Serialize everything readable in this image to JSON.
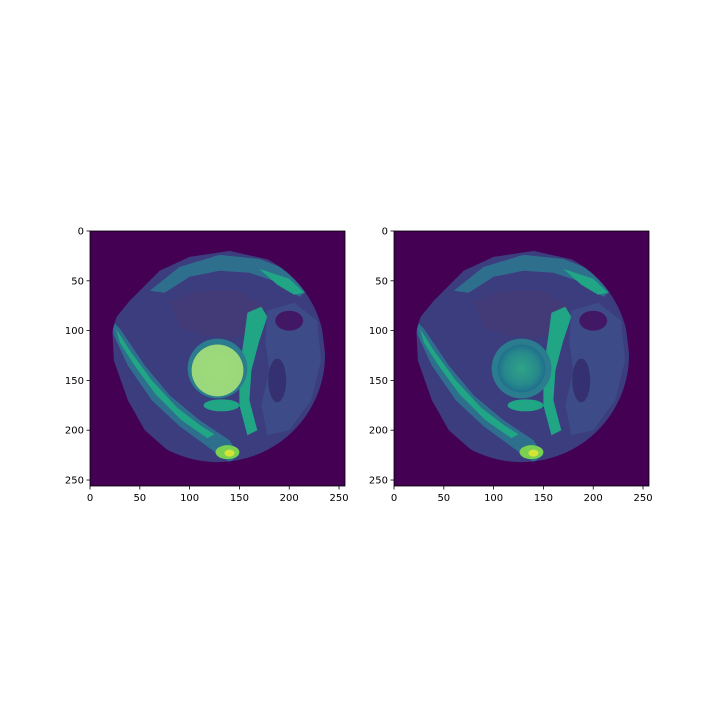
{
  "chart_data": [
    {
      "type": "heatmap",
      "title": "",
      "xlabel": "",
      "ylabel": "",
      "xlim": [
        0,
        256
      ],
      "ylim": [
        256,
        0
      ],
      "xticks": [
        "0",
        "50",
        "100",
        "150",
        "200",
        "250"
      ],
      "yticks": [
        "0",
        "50",
        "100",
        "150",
        "200",
        "250"
      ],
      "colormap": "viridis",
      "overlay": {
        "shape": "segmentation mask",
        "color": "#a6df7a",
        "center": [
          128,
          140
        ],
        "radius": 26
      }
    },
    {
      "type": "heatmap",
      "title": "",
      "xlabel": "",
      "ylabel": "",
      "xlim": [
        0,
        256
      ],
      "ylim": [
        256,
        0
      ],
      "xticks": [
        "0",
        "50",
        "100",
        "150",
        "200",
        "250"
      ],
      "yticks": [
        "0",
        "50",
        "100",
        "150",
        "200",
        "250"
      ],
      "colormap": "viridis"
    }
  ],
  "colors": {
    "background": "#440154",
    "dark_tissue": "#3b3d7e",
    "mid_tissue": "#2f6f8e",
    "bright_tissue": "#21a685",
    "highlight": "#7ad151",
    "peak": "#d6e337",
    "mask": "#a6df7a"
  }
}
